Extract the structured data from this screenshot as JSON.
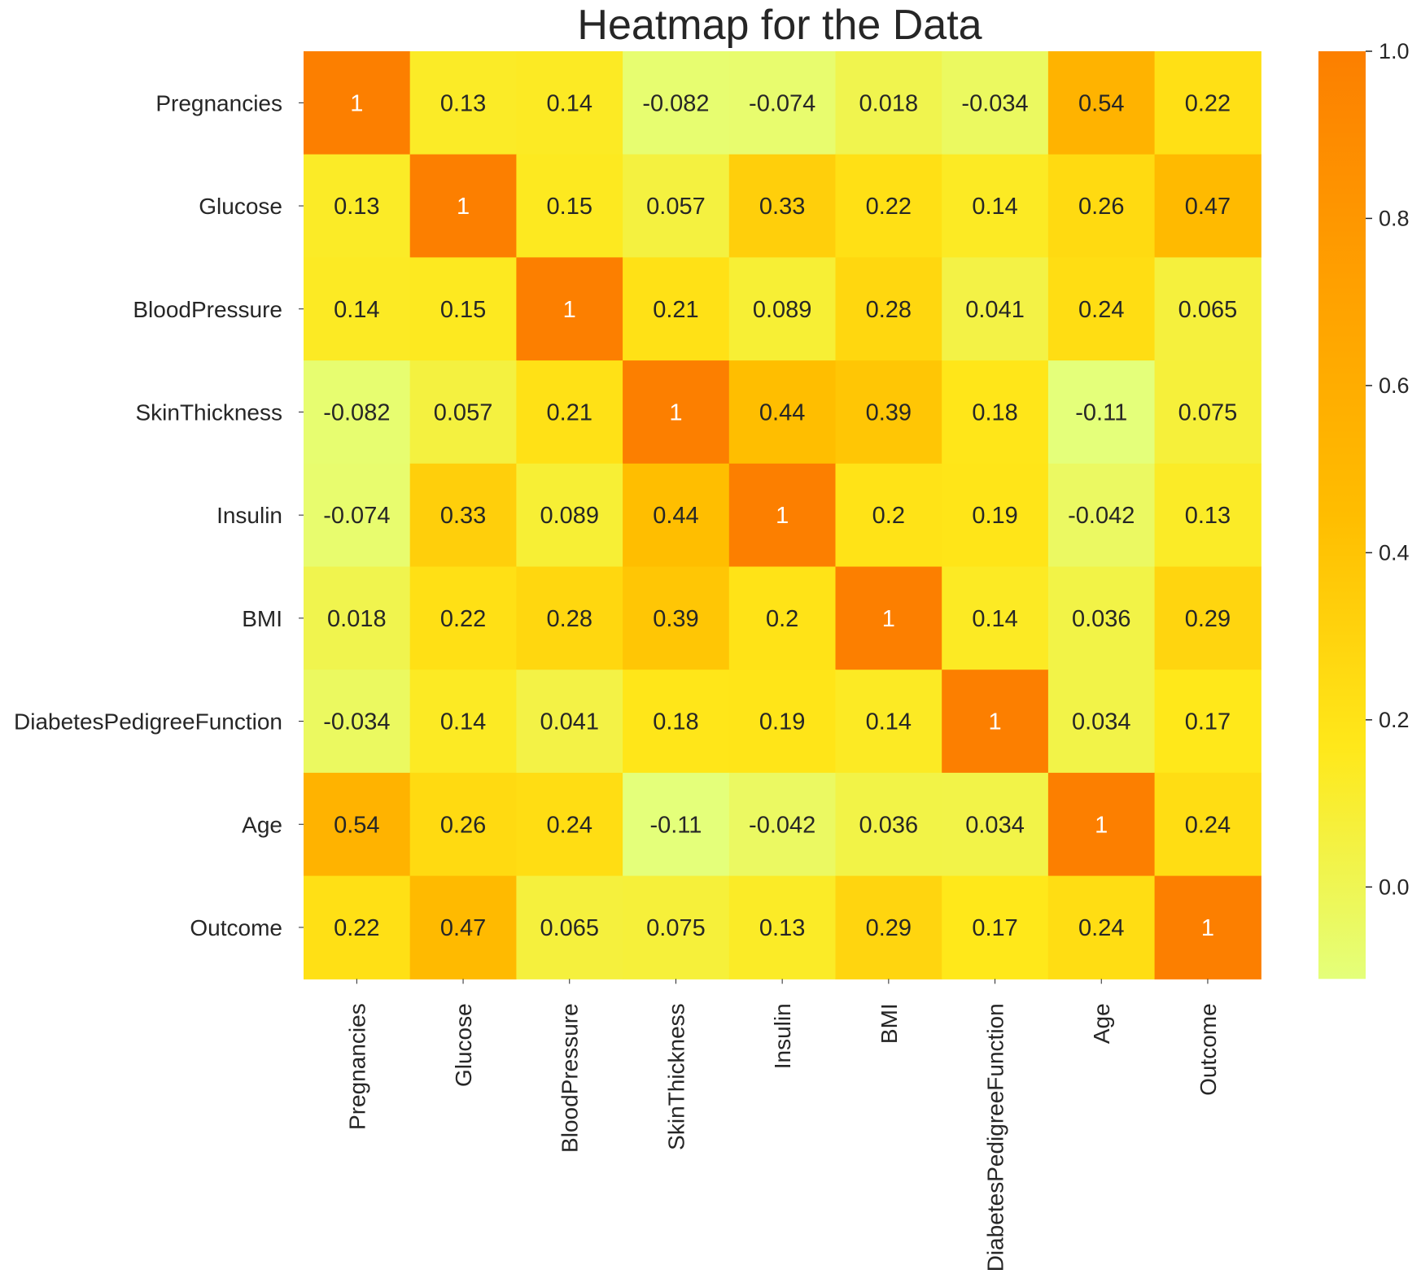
{
  "chart_data": {
    "type": "heatmap",
    "title": "Heatmap for the Data",
    "labels": [
      "Pregnancies",
      "Glucose",
      "BloodPressure",
      "SkinThickness",
      "Insulin",
      "BMI",
      "DiabetesPedigreeFunction",
      "Age",
      "Outcome"
    ],
    "matrix": [
      [
        1,
        0.13,
        0.14,
        -0.082,
        -0.074,
        0.018,
        -0.034,
        0.54,
        0.22
      ],
      [
        0.13,
        1,
        0.15,
        0.057,
        0.33,
        0.22,
        0.14,
        0.26,
        0.47
      ],
      [
        0.14,
        0.15,
        1,
        0.21,
        0.089,
        0.28,
        0.041,
        0.24,
        0.065
      ],
      [
        -0.082,
        0.057,
        0.21,
        1,
        0.44,
        0.39,
        0.18,
        -0.11,
        0.075
      ],
      [
        -0.074,
        0.33,
        0.089,
        0.44,
        1,
        0.2,
        0.19,
        -0.042,
        0.13
      ],
      [
        0.018,
        0.22,
        0.28,
        0.39,
        0.2,
        1,
        0.14,
        0.036,
        0.29
      ],
      [
        -0.034,
        0.14,
        0.041,
        0.18,
        0.19,
        0.14,
        1,
        0.034,
        0.17
      ],
      [
        0.54,
        0.26,
        0.24,
        -0.11,
        -0.042,
        0.036,
        0.034,
        1,
        0.24
      ],
      [
        0.22,
        0.47,
        0.065,
        0.075,
        0.13,
        0.29,
        0.17,
        0.24,
        1
      ]
    ],
    "cell_text": [
      [
        "1",
        "0.13",
        "0.14",
        "-0.082",
        "-0.074",
        "0.018",
        "-0.034",
        "0.54",
        "0.22"
      ],
      [
        "0.13",
        "1",
        "0.15",
        "0.057",
        "0.33",
        "0.22",
        "0.14",
        "0.26",
        "0.47"
      ],
      [
        "0.14",
        "0.15",
        "1",
        "0.21",
        "0.089",
        "0.28",
        "0.041",
        "0.24",
        "0.065"
      ],
      [
        "-0.082",
        "0.057",
        "0.21",
        "1",
        "0.44",
        "0.39",
        "0.18",
        "-0.11",
        "0.075"
      ],
      [
        "-0.074",
        "0.33",
        "0.089",
        "0.44",
        "1",
        "0.2",
        "0.19",
        "-0.042",
        "0.13"
      ],
      [
        "0.018",
        "0.22",
        "0.28",
        "0.39",
        "0.2",
        "1",
        "0.14",
        "0.036",
        "0.29"
      ],
      [
        "-0.034",
        "0.14",
        "0.041",
        "0.18",
        "0.19",
        "0.14",
        "1",
        "0.034",
        "0.17"
      ],
      [
        "0.54",
        "0.26",
        "0.24",
        "-0.11",
        "-0.042",
        "0.036",
        "0.034",
        "1",
        "0.24"
      ],
      [
        "0.22",
        "0.47",
        "0.065",
        "0.075",
        "0.13",
        "0.29",
        "0.17",
        "0.24",
        "1"
      ]
    ],
    "color_range": [
      -0.11,
      1.0
    ],
    "colormap": "Wistia",
    "colormap_stops": [
      "#e4ff7a",
      "#ffe81a",
      "#ffbd00",
      "#ffa000",
      "#fc7f00"
    ],
    "colorbar_ticks": [
      "0.0",
      "0.2",
      "0.4",
      "0.6",
      "0.8",
      "1.0"
    ],
    "annotation_colors": {
      "dark": "#262626",
      "light": "#ffffff"
    },
    "grid": false,
    "legend": "colorbar-right"
  }
}
